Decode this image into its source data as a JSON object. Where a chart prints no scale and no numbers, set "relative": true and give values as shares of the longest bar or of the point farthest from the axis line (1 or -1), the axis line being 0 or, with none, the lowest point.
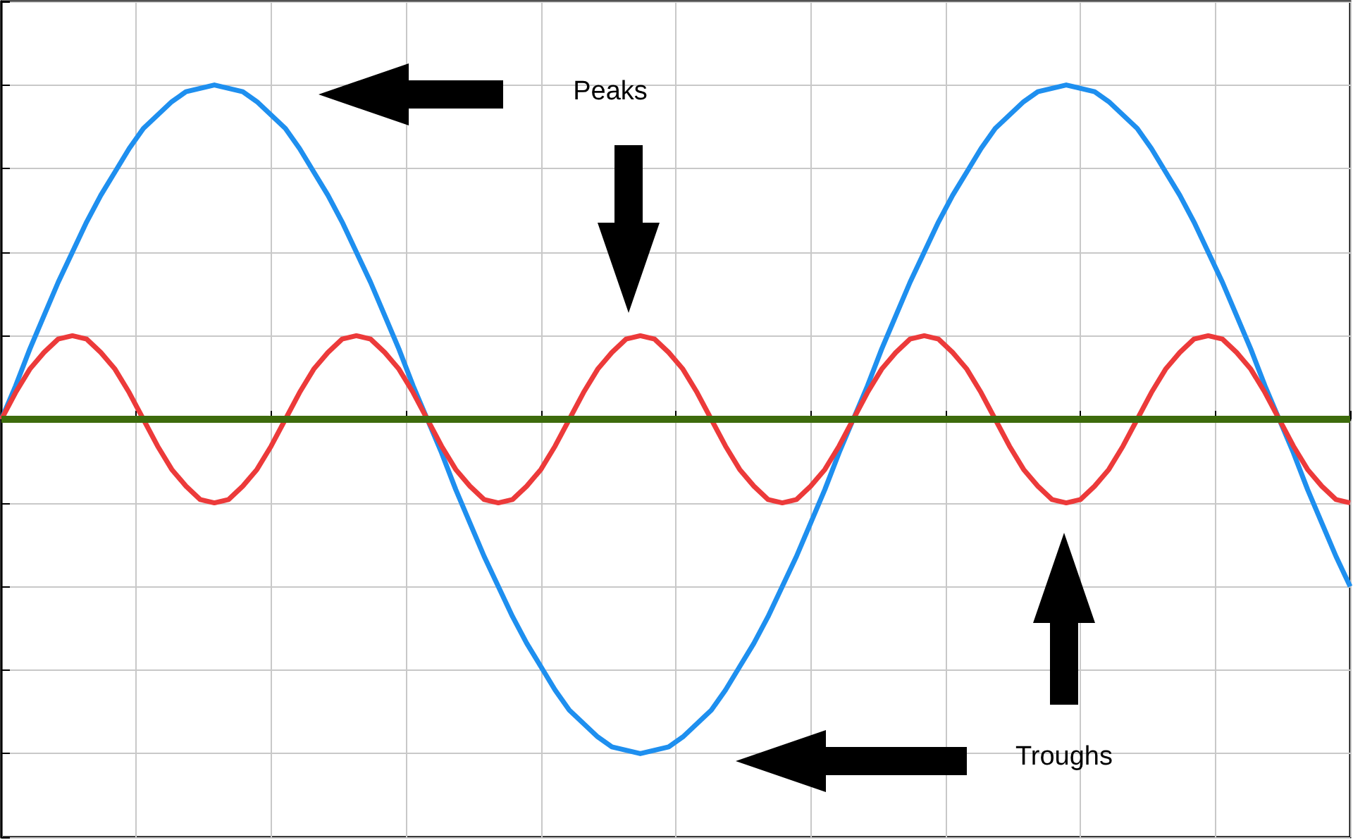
{
  "chart_data": {
    "type": "line",
    "relative": true,
    "grid": true,
    "marker": "none",
    "line_style": "solid",
    "categories": [
      null,
      null,
      null,
      null,
      null,
      null,
      null,
      null,
      null,
      null,
      null,
      null,
      null,
      null,
      null,
      null,
      null,
      null,
      null,
      null,
      null,
      null,
      null,
      null,
      null,
      null,
      null,
      null,
      null,
      null,
      null,
      null,
      null,
      null,
      null,
      null,
      null,
      null,
      null,
      null,
      null,
      null,
      null,
      null,
      null,
      null,
      null,
      null,
      null,
      null,
      null,
      null,
      null,
      null,
      null,
      null,
      null,
      null,
      null,
      null,
      null,
      null,
      null,
      null,
      null,
      null,
      null,
      null,
      null,
      null,
      null,
      null,
      null,
      null,
      null,
      null,
      null,
      null,
      null,
      null,
      null,
      null,
      null,
      null,
      null,
      null,
      null,
      null,
      null,
      null,
      null,
      null,
      null,
      null,
      null,
      null
    ],
    "series": [
      {
        "color": "#1e8fef",
        "values": [
          0,
          0.1,
          0.21,
          0.31,
          0.41,
          0.5,
          0.59,
          0.67,
          0.74,
          0.81,
          0.87,
          0.91,
          0.95,
          0.98,
          0.99,
          1,
          0.99,
          0.98,
          0.95,
          0.91,
          0.87,
          0.81,
          0.74,
          0.67,
          0.59,
          0.5,
          0.41,
          0.31,
          0.21,
          0.1,
          0,
          -0.1,
          -0.21,
          -0.31,
          -0.41,
          -0.5,
          -0.59,
          -0.67,
          -0.74,
          -0.81,
          -0.87,
          -0.91,
          -0.95,
          -0.98,
          -0.99,
          -1,
          -0.99,
          -0.98,
          -0.95,
          -0.91,
          -0.87,
          -0.81,
          -0.74,
          -0.67,
          -0.59,
          -0.5,
          -0.41,
          -0.31,
          -0.21,
          -0.1,
          0,
          0.1,
          0.21,
          0.31,
          0.41,
          0.5,
          0.59,
          0.67,
          0.74,
          0.81,
          0.87,
          0.91,
          0.95,
          0.98,
          0.99,
          1,
          0.99,
          0.98,
          0.95,
          0.91,
          0.87,
          0.81,
          0.74,
          0.67,
          0.59,
          0.5,
          0.41,
          0.31,
          0.21,
          0.1,
          0,
          -0.1,
          -0.21,
          -0.31,
          -0.41,
          -0.5
        ]
      },
      {
        "color": "#ec3a3a",
        "values": [
          0,
          0.08,
          0.15,
          0.2,
          0.24,
          0.25,
          0.24,
          0.2,
          0.15,
          0.08,
          0,
          -0.08,
          -0.15,
          -0.2,
          -0.24,
          -0.25,
          -0.24,
          -0.2,
          -0.15,
          -0.08,
          0,
          0.08,
          0.15,
          0.2,
          0.24,
          0.25,
          0.24,
          0.2,
          0.15,
          0.08,
          0,
          -0.08,
          -0.15,
          -0.2,
          -0.24,
          -0.25,
          -0.24,
          -0.2,
          -0.15,
          -0.08,
          0,
          0.08,
          0.15,
          0.2,
          0.24,
          0.25,
          0.24,
          0.2,
          0.15,
          0.08,
          0,
          -0.08,
          -0.15,
          -0.2,
          -0.24,
          -0.25,
          -0.24,
          -0.2,
          -0.15,
          -0.08,
          0,
          0.08,
          0.15,
          0.2,
          0.24,
          0.25,
          0.24,
          0.2,
          0.15,
          0.08,
          0,
          -0.08,
          -0.15,
          -0.2,
          -0.24,
          -0.25,
          -0.24,
          -0.2,
          -0.15,
          -0.08,
          0,
          0.08,
          0.15,
          0.2,
          0.24,
          0.25,
          0.24,
          0.2,
          0.15,
          0.08,
          0,
          -0.08,
          -0.15,
          -0.2,
          -0.24,
          -0.25
        ]
      },
      {
        "color": "#3d6b0c",
        "values": [
          0,
          0,
          0,
          0,
          0,
          0,
          0,
          0,
          0,
          0,
          0,
          0,
          0,
          0,
          0,
          0,
          0,
          0,
          0,
          0,
          0,
          0,
          0,
          0,
          0,
          0,
          0,
          0,
          0,
          0,
          0,
          0,
          0,
          0,
          0,
          0,
          0,
          0,
          0,
          0,
          0,
          0,
          0,
          0,
          0,
          0,
          0,
          0,
          0,
          0,
          0,
          0,
          0,
          0,
          0,
          0,
          0,
          0,
          0,
          0,
          0,
          0,
          0,
          0,
          0,
          0,
          0,
          0,
          0,
          0,
          0,
          0,
          0,
          0,
          0,
          0,
          0,
          0,
          0,
          0,
          0,
          0,
          0,
          0,
          0,
          0,
          0,
          0,
          0,
          0,
          0,
          0,
          0,
          0,
          0,
          0
        ]
      }
    ],
    "annotations": [
      "Peaks",
      "Troughs"
    ]
  }
}
